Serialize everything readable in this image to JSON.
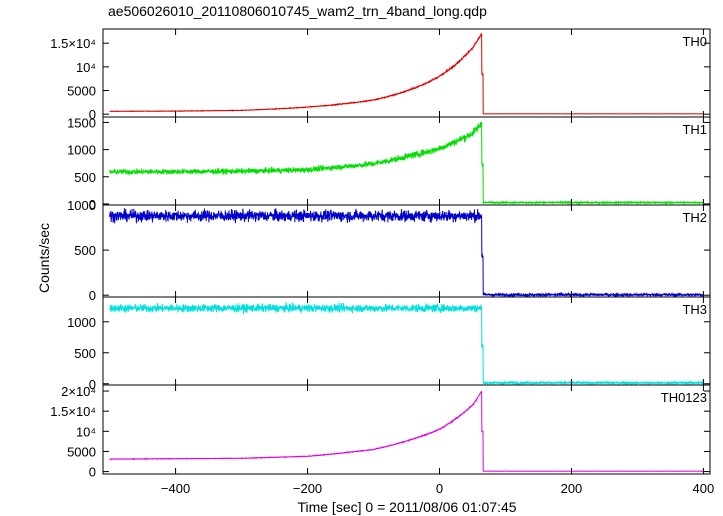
{
  "chart_data": {
    "type": "line",
    "title": "ae506026010_20110806010745_wam2_trn_4band_long.qdp",
    "xlabel": "Time [sec] 0 = 2011/08/06 01:07:45",
    "ylabel": "Counts/sec",
    "xlim": [
      -510,
      410
    ],
    "x_ticks": [
      -400,
      -200,
      0,
      200,
      400
    ],
    "x_tick_labels": [
      "−400",
      "−200",
      "0",
      "200",
      "400"
    ],
    "drop_time": 66,
    "grid": false,
    "panels": [
      {
        "name": "TH0",
        "color": "#e00000",
        "ylim": [
          -600,
          18000
        ],
        "y_ticks": [
          0,
          5000,
          10000,
          15000
        ],
        "y_tick_labels": [
          "0",
          "5000",
          "10⁴",
          "1.5×10⁴"
        ],
        "trend": {
          "start_value": 600,
          "peak_value": 17000,
          "after_drop": 70,
          "noise": 40
        },
        "points": [
          [
            -500,
            600
          ],
          [
            -400,
            650
          ],
          [
            -300,
            800
          ],
          [
            -200,
            1500
          ],
          [
            -100,
            3000
          ],
          [
            0,
            8000
          ],
          [
            50,
            14000
          ],
          [
            64,
            17000
          ],
          [
            66,
            70
          ],
          [
            400,
            70
          ]
        ]
      },
      {
        "name": "TH1",
        "color": "#00e000",
        "ylim": [
          -20,
          1600
        ],
        "y_ticks": [
          0,
          500,
          1000,
          1500
        ],
        "y_tick_labels": [
          "0",
          "500",
          "1000",
          "1500"
        ],
        "trend": {
          "start_value": 590,
          "peak_value": 1480,
          "after_drop": 25,
          "noise": 45
        },
        "points": [
          [
            -500,
            590
          ],
          [
            -300,
            600
          ],
          [
            -200,
            630
          ],
          [
            -100,
            740
          ],
          [
            0,
            1020
          ],
          [
            50,
            1300
          ],
          [
            64,
            1480
          ],
          [
            66,
            25
          ],
          [
            400,
            25
          ]
        ]
      },
      {
        "name": "TH2",
        "color": "#0000cc",
        "ylim": [
          -20,
          1000
        ],
        "y_ticks": [
          0,
          500,
          1000
        ],
        "y_tick_labels": [
          "0",
          "500",
          "1000"
        ],
        "trend": {
          "start_value": 880,
          "peak_value": 880,
          "after_drop": 5,
          "noise": 60
        },
        "points": [
          [
            -500,
            880
          ],
          [
            0,
            880
          ],
          [
            64,
            880
          ],
          [
            66,
            5
          ],
          [
            400,
            5
          ]
        ]
      },
      {
        "name": "TH3",
        "color": "#00e0e0",
        "ylim": [
          -20,
          1400
        ],
        "y_ticks": [
          0,
          500,
          1000
        ],
        "y_tick_labels": [
          "0",
          "500",
          "1000"
        ],
        "trend": {
          "start_value": 1220,
          "peak_value": 1220,
          "after_drop": 15,
          "noise": 60
        },
        "points": [
          [
            -500,
            1220
          ],
          [
            0,
            1220
          ],
          [
            64,
            1220
          ],
          [
            66,
            15
          ],
          [
            400,
            15
          ]
        ]
      },
      {
        "name": "TH0123",
        "color": "#e000e0",
        "ylim": [
          -600,
          21500
        ],
        "y_ticks": [
          0,
          5000,
          10000,
          15000,
          20000
        ],
        "y_tick_labels": [
          "0",
          "5000",
          "10⁴",
          "1.5×10⁴",
          "2×10⁴"
        ],
        "trend": {
          "start_value": 3100,
          "peak_value": 20000,
          "after_drop": 100,
          "noise": 60
        },
        "points": [
          [
            -500,
            3100
          ],
          [
            -300,
            3300
          ],
          [
            -200,
            3800
          ],
          [
            -100,
            5500
          ],
          [
            0,
            10500
          ],
          [
            50,
            16500
          ],
          [
            64,
            20000
          ],
          [
            66,
            100
          ],
          [
            400,
            100
          ]
        ]
      }
    ]
  }
}
